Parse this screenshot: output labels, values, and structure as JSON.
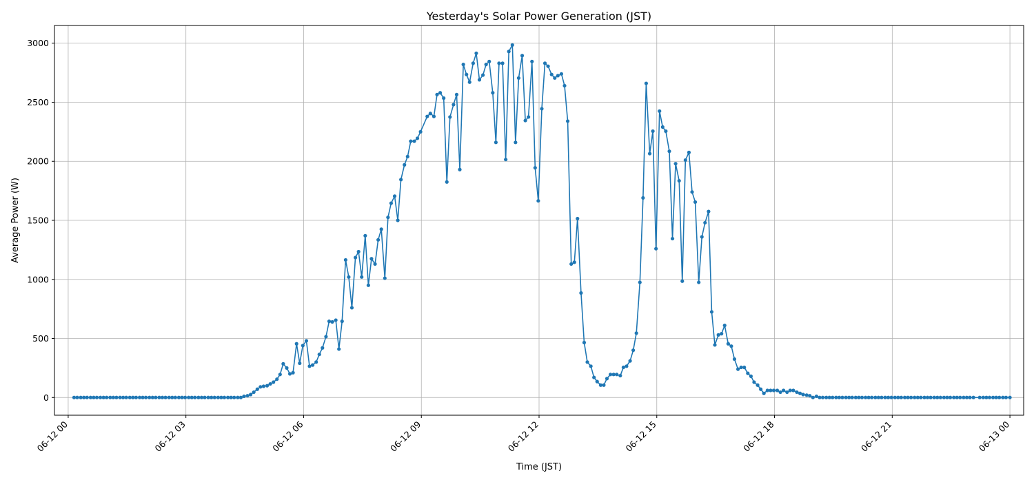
{
  "chart_data": {
    "type": "line",
    "title": "Yesterday's Solar Power Generation (JST)",
    "xlabel": "Time (JST)",
    "ylabel": "Average Power (W)",
    "x_range_hours": [
      -0.35,
      24.35
    ],
    "ylim": [
      -150,
      3150
    ],
    "grid": true,
    "color": "#1f77b4",
    "x_ticks": [
      {
        "hour": 0,
        "label": "06-12 00"
      },
      {
        "hour": 3,
        "label": "06-12 03"
      },
      {
        "hour": 6,
        "label": "06-12 06"
      },
      {
        "hour": 9,
        "label": "06-12 09"
      },
      {
        "hour": 12,
        "label": "06-12 12"
      },
      {
        "hour": 15,
        "label": "06-12 15"
      },
      {
        "hour": 18,
        "label": "06-12 18"
      },
      {
        "hour": 21,
        "label": "06-12 21"
      },
      {
        "hour": 24,
        "label": "06-13 00"
      }
    ],
    "y_ticks": [
      0,
      500,
      1000,
      1500,
      2000,
      2500,
      3000
    ],
    "series": [
      {
        "points": [
          [
            0.15,
            0
          ],
          [
            0.23,
            0
          ],
          [
            0.32,
            0
          ],
          [
            0.4,
            0
          ],
          [
            0.48,
            0
          ],
          [
            0.57,
            0
          ],
          [
            0.65,
            0
          ],
          [
            0.73,
            0
          ],
          [
            0.82,
            0
          ],
          [
            0.9,
            0
          ],
          [
            0.98,
            0
          ],
          [
            1.07,
            0
          ],
          [
            1.15,
            0
          ],
          [
            1.23,
            0
          ],
          [
            1.32,
            0
          ],
          [
            1.4,
            0
          ],
          [
            1.48,
            0
          ],
          [
            1.57,
            0
          ],
          [
            1.65,
            0
          ],
          [
            1.73,
            0
          ],
          [
            1.82,
            0
          ],
          [
            1.9,
            0
          ],
          [
            1.98,
            0
          ],
          [
            2.07,
            0
          ],
          [
            2.15,
            0
          ],
          [
            2.23,
            0
          ],
          [
            2.32,
            0
          ],
          [
            2.4,
            0
          ],
          [
            2.48,
            0
          ],
          [
            2.57,
            0
          ],
          [
            2.65,
            0
          ],
          [
            2.73,
            0
          ],
          [
            2.82,
            0
          ],
          [
            2.9,
            0
          ],
          [
            2.98,
            0
          ],
          [
            3.07,
            0
          ],
          [
            3.15,
            0
          ],
          [
            3.23,
            0
          ],
          [
            3.32,
            0
          ],
          [
            3.4,
            0
          ],
          [
            3.48,
            0
          ],
          [
            3.57,
            0
          ],
          [
            3.65,
            0
          ],
          [
            3.73,
            0
          ],
          [
            3.82,
            0
          ],
          [
            3.9,
            0
          ],
          [
            3.98,
            0
          ],
          [
            4.07,
            0
          ],
          [
            4.15,
            0
          ],
          [
            4.23,
            0
          ],
          [
            4.32,
            0
          ],
          [
            4.4,
            0
          ],
          [
            4.48,
            10
          ],
          [
            4.57,
            15
          ],
          [
            4.65,
            25
          ],
          [
            4.73,
            45
          ],
          [
            4.82,
            70
          ],
          [
            4.9,
            90
          ],
          [
            4.98,
            95
          ],
          [
            5.07,
            100
          ],
          [
            5.15,
            115
          ],
          [
            5.23,
            130
          ],
          [
            5.32,
            155
          ],
          [
            5.4,
            195
          ],
          [
            5.48,
            285
          ],
          [
            5.57,
            250
          ],
          [
            5.65,
            200
          ],
          [
            5.73,
            210
          ],
          [
            5.82,
            455
          ],
          [
            5.9,
            290
          ],
          [
            5.98,
            440
          ],
          [
            6.07,
            480
          ],
          [
            6.15,
            265
          ],
          [
            6.23,
            275
          ],
          [
            6.32,
            300
          ],
          [
            6.4,
            365
          ],
          [
            6.48,
            420
          ],
          [
            6.57,
            515
          ],
          [
            6.65,
            645
          ],
          [
            6.73,
            640
          ],
          [
            6.82,
            655
          ],
          [
            6.9,
            410
          ],
          [
            6.98,
            645
          ],
          [
            7.07,
            1165
          ],
          [
            7.15,
            1020
          ],
          [
            7.23,
            760
          ],
          [
            7.32,
            1185
          ],
          [
            7.4,
            1235
          ],
          [
            7.48,
            1020
          ],
          [
            7.57,
            1370
          ],
          [
            7.65,
            950
          ],
          [
            7.73,
            1175
          ],
          [
            7.82,
            1130
          ],
          [
            7.9,
            1335
          ],
          [
            7.98,
            1425
          ],
          [
            8.07,
            1010
          ],
          [
            8.15,
            1525
          ],
          [
            8.23,
            1645
          ],
          [
            8.32,
            1705
          ],
          [
            8.4,
            1500
          ],
          [
            8.48,
            1845
          ],
          [
            8.57,
            1970
          ],
          [
            8.65,
            2040
          ],
          [
            8.73,
            2170
          ],
          [
            8.82,
            2170
          ],
          [
            8.9,
            2195
          ],
          [
            8.98,
            2250
          ],
          [
            9.15,
            2380
          ],
          [
            9.23,
            2405
          ],
          [
            9.32,
            2380
          ],
          [
            9.4,
            2565
          ],
          [
            9.48,
            2580
          ],
          [
            9.57,
            2535
          ],
          [
            9.65,
            1825
          ],
          [
            9.73,
            2375
          ],
          [
            9.82,
            2480
          ],
          [
            9.9,
            2565
          ],
          [
            9.98,
            1930
          ],
          [
            10.07,
            2820
          ],
          [
            10.15,
            2735
          ],
          [
            10.23,
            2670
          ],
          [
            10.32,
            2830
          ],
          [
            10.4,
            2915
          ],
          [
            10.48,
            2690
          ],
          [
            10.57,
            2730
          ],
          [
            10.65,
            2820
          ],
          [
            10.73,
            2845
          ],
          [
            10.82,
            2580
          ],
          [
            10.9,
            2160
          ],
          [
            10.98,
            2830
          ],
          [
            11.07,
            2830
          ],
          [
            11.15,
            2015
          ],
          [
            11.23,
            2930
          ],
          [
            11.32,
            2985
          ],
          [
            11.4,
            2160
          ],
          [
            11.48,
            2705
          ],
          [
            11.57,
            2895
          ],
          [
            11.65,
            2345
          ],
          [
            11.73,
            2375
          ],
          [
            11.82,
            2845
          ],
          [
            11.9,
            1945
          ],
          [
            11.98,
            1665
          ],
          [
            12.07,
            2445
          ],
          [
            12.15,
            2830
          ],
          [
            12.23,
            2805
          ],
          [
            12.32,
            2735
          ],
          [
            12.4,
            2705
          ],
          [
            12.48,
            2725
          ],
          [
            12.57,
            2740
          ],
          [
            12.65,
            2640
          ],
          [
            12.73,
            2340
          ],
          [
            12.82,
            1130
          ],
          [
            12.9,
            1145
          ],
          [
            12.98,
            1515
          ],
          [
            13.07,
            885
          ],
          [
            13.15,
            465
          ],
          [
            13.23,
            300
          ],
          [
            13.32,
            265
          ],
          [
            13.4,
            170
          ],
          [
            13.48,
            135
          ],
          [
            13.57,
            105
          ],
          [
            13.65,
            105
          ],
          [
            13.73,
            160
          ],
          [
            13.82,
            195
          ],
          [
            13.9,
            195
          ],
          [
            13.98,
            195
          ],
          [
            14.07,
            185
          ],
          [
            14.15,
            255
          ],
          [
            14.23,
            265
          ],
          [
            14.32,
            310
          ],
          [
            14.4,
            400
          ],
          [
            14.48,
            545
          ],
          [
            14.57,
            975
          ],
          [
            14.65,
            1690
          ],
          [
            14.73,
            2660
          ],
          [
            14.82,
            2065
          ],
          [
            14.9,
            2255
          ],
          [
            14.98,
            1260
          ],
          [
            15.07,
            2425
          ],
          [
            15.15,
            2290
          ],
          [
            15.23,
            2255
          ],
          [
            15.32,
            2085
          ],
          [
            15.4,
            1345
          ],
          [
            15.48,
            1980
          ],
          [
            15.57,
            1835
          ],
          [
            15.65,
            985
          ],
          [
            15.73,
            2010
          ],
          [
            15.82,
            2075
          ],
          [
            15.9,
            1740
          ],
          [
            15.98,
            1655
          ],
          [
            16.07,
            975
          ],
          [
            16.15,
            1360
          ],
          [
            16.23,
            1480
          ],
          [
            16.32,
            1575
          ],
          [
            16.4,
            725
          ],
          [
            16.48,
            445
          ],
          [
            16.57,
            530
          ],
          [
            16.65,
            540
          ],
          [
            16.73,
            610
          ],
          [
            16.82,
            455
          ],
          [
            16.9,
            435
          ],
          [
            16.98,
            325
          ],
          [
            17.07,
            240
          ],
          [
            17.15,
            255
          ],
          [
            17.23,
            255
          ],
          [
            17.32,
            205
          ],
          [
            17.4,
            180
          ],
          [
            17.48,
            130
          ],
          [
            17.57,
            105
          ],
          [
            17.65,
            70
          ],
          [
            17.73,
            35
          ],
          [
            17.82,
            60
          ],
          [
            17.9,
            60
          ],
          [
            17.98,
            60
          ],
          [
            18.07,
            60
          ],
          [
            18.15,
            45
          ],
          [
            18.23,
            60
          ],
          [
            18.32,
            45
          ],
          [
            18.4,
            60
          ],
          [
            18.48,
            60
          ],
          [
            18.57,
            45
          ],
          [
            18.65,
            35
          ],
          [
            18.73,
            25
          ],
          [
            18.82,
            20
          ],
          [
            18.9,
            15
          ],
          [
            18.98,
            0
          ],
          [
            19.07,
            10
          ],
          [
            19.15,
            0
          ],
          [
            19.23,
            0
          ],
          [
            19.32,
            0
          ],
          [
            19.4,
            0
          ],
          [
            19.48,
            0
          ],
          [
            19.57,
            0
          ],
          [
            19.65,
            0
          ],
          [
            19.73,
            0
          ],
          [
            19.82,
            0
          ],
          [
            19.9,
            0
          ],
          [
            19.98,
            0
          ],
          [
            20.07,
            0
          ],
          [
            20.15,
            0
          ],
          [
            20.23,
            0
          ],
          [
            20.32,
            0
          ],
          [
            20.4,
            0
          ],
          [
            20.48,
            0
          ],
          [
            20.57,
            0
          ],
          [
            20.65,
            0
          ],
          [
            20.73,
            0
          ],
          [
            20.82,
            0
          ],
          [
            20.9,
            0
          ],
          [
            20.98,
            0
          ],
          [
            21.07,
            0
          ],
          [
            21.15,
            0
          ],
          [
            21.23,
            0
          ],
          [
            21.32,
            0
          ],
          [
            21.4,
            0
          ],
          [
            21.48,
            0
          ],
          [
            21.57,
            0
          ],
          [
            21.65,
            0
          ],
          [
            21.73,
            0
          ],
          [
            21.82,
            0
          ],
          [
            21.9,
            0
          ],
          [
            21.98,
            0
          ],
          [
            22.07,
            0
          ],
          [
            22.15,
            0
          ],
          [
            22.23,
            0
          ],
          [
            22.32,
            0
          ],
          [
            22.4,
            0
          ],
          [
            22.48,
            0
          ],
          [
            22.57,
            0
          ],
          [
            22.65,
            0
          ],
          [
            22.73,
            0
          ],
          [
            22.82,
            0
          ],
          [
            22.9,
            0
          ],
          [
            22.98,
            0
          ],
          [
            23.07,
            0
          ],
          [
            23.23,
            0
          ],
          [
            23.32,
            0
          ],
          [
            23.4,
            0
          ],
          [
            23.48,
            0
          ],
          [
            23.57,
            0
          ],
          [
            23.65,
            0
          ],
          [
            23.73,
            0
          ],
          [
            23.82,
            0
          ],
          [
            23.9,
            0
          ],
          [
            24.0,
            0
          ]
        ]
      }
    ]
  }
}
